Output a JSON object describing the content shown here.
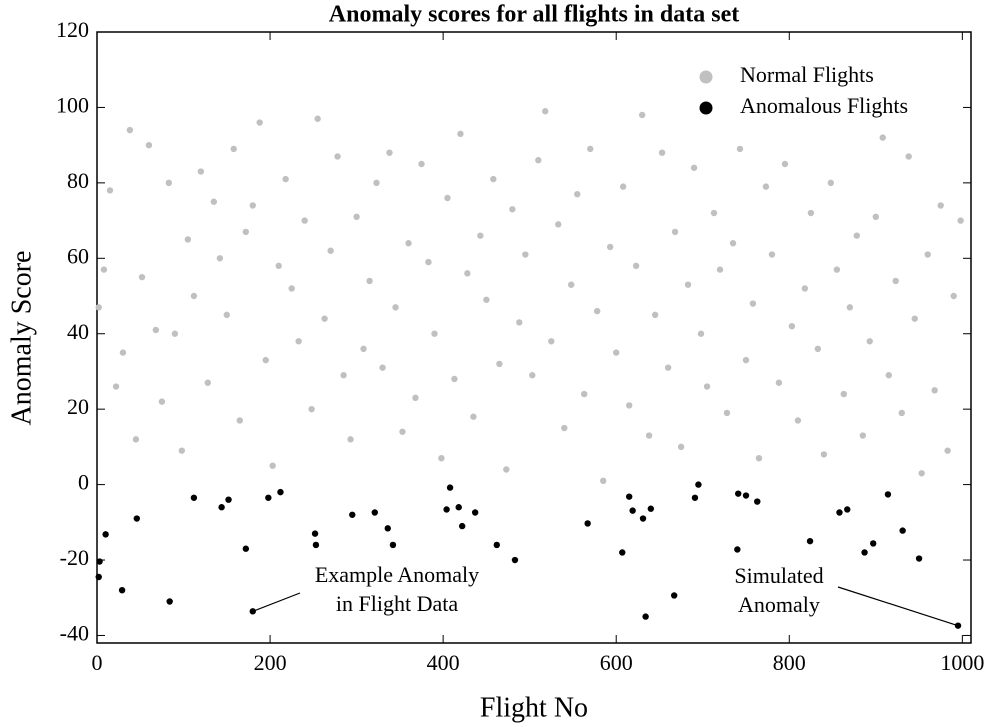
{
  "chart_data": {
    "type": "scatter",
    "title": "Anomaly scores for all flights in data set",
    "x_label": "Flight No",
    "y_label": "Anomaly Score",
    "xlim": [
      0,
      1010
    ],
    "ylim": [
      -42,
      120
    ],
    "xticks": [
      0,
      200,
      400,
      600,
      800,
      1000
    ],
    "yticks": [
      -40,
      -20,
      0,
      20,
      40,
      60,
      80,
      100,
      120
    ],
    "legend": "top-right",
    "series": [
      {
        "name": "Normal Flights",
        "color": "#c0c0c0",
        "x": [
          2,
          8,
          15,
          22,
          30,
          38,
          45,
          52,
          60,
          68,
          75,
          83,
          90,
          98,
          105,
          112,
          120,
          128,
          135,
          142,
          150,
          158,
          165,
          172,
          180,
          188,
          195,
          203,
          210,
          218,
          225,
          233,
          240,
          248,
          255,
          263,
          270,
          278,
          285,
          293,
          300,
          308,
          315,
          323,
          330,
          338,
          345,
          353,
          360,
          368,
          375,
          383,
          390,
          398,
          405,
          413,
          420,
          428,
          435,
          443,
          450,
          458,
          465,
          473,
          480,
          488,
          495,
          503,
          510,
          518,
          525,
          533,
          540,
          548,
          555,
          563,
          570,
          578,
          585,
          593,
          600,
          608,
          615,
          623,
          630,
          638,
          645,
          653,
          660,
          668,
          675,
          683,
          690,
          698,
          705,
          713,
          720,
          728,
          735,
          743,
          750,
          758,
          765,
          773,
          780,
          788,
          795,
          803,
          810,
          818,
          825,
          833,
          840,
          848,
          855,
          863,
          870,
          878,
          885,
          893,
          900,
          908,
          915,
          923,
          930,
          938,
          945,
          953,
          960,
          968,
          975,
          983,
          990,
          998
        ],
        "values": [
          47,
          57,
          78,
          26,
          35,
          94,
          12,
          55,
          90,
          41,
          22,
          80,
          40,
          9,
          65,
          50,
          83,
          27,
          75,
          60,
          45,
          89,
          17,
          67,
          74,
          96,
          33,
          5,
          58,
          81,
          52,
          38,
          70,
          20,
          97,
          44,
          62,
          87,
          29,
          12,
          71,
          36,
          54,
          80,
          31,
          88,
          47,
          14,
          64,
          23,
          85,
          59,
          40,
          7,
          76,
          28,
          93,
          56,
          18,
          66,
          49,
          81,
          32,
          4,
          73,
          43,
          61,
          29,
          86,
          99,
          38,
          69,
          15,
          53,
          77,
          24,
          89,
          46,
          1,
          63,
          35,
          79,
          21,
          58,
          98,
          13,
          45,
          88,
          31,
          67,
          10,
          53,
          84,
          40,
          26,
          72,
          57,
          19,
          64,
          89,
          33,
          48,
          7,
          79,
          61,
          27,
          85,
          42,
          17,
          52,
          72,
          36,
          8,
          80,
          57,
          24,
          47,
          66,
          13,
          38,
          71,
          92,
          29,
          54,
          19,
          87,
          44,
          3,
          61,
          25,
          74,
          9,
          50,
          70
        ]
      },
      {
        "name": "Anomalous Flights",
        "color": "#000000",
        "x": [
          3,
          2,
          10,
          29,
          46,
          84,
          112,
          144,
          152,
          172,
          180,
          198,
          212,
          252,
          253,
          295,
          321,
          336,
          342,
          404,
          408,
          418,
          422,
          437,
          462,
          483,
          567,
          607,
          615,
          619,
          631,
          634,
          640,
          667,
          691,
          695,
          740,
          741,
          750,
          763,
          824,
          858,
          867,
          887,
          897,
          914,
          931,
          950,
          995
        ],
        "values": [
          -20.4,
          -24.5,
          -13.2,
          -28,
          -9,
          -31,
          -3.5,
          -6,
          -4,
          -17,
          -33.6,
          -3.5,
          -2,
          -13,
          -16,
          -8,
          -7.4,
          -11.6,
          -16,
          -6.6,
          -0.8,
          -6,
          -11,
          -7.4,
          -16,
          -20,
          -10.3,
          -18,
          -3.2,
          -6.9,
          -9,
          -35,
          -6.4,
          -29.4,
          -3.5,
          0,
          -17.2,
          -2.4,
          -2.9,
          -4.5,
          -15,
          -7.4,
          -6.6,
          -18,
          -15.6,
          -2.6,
          -12.2,
          -19.6,
          -37.4
        ]
      }
    ],
    "annotations": [
      {
        "lines": [
          "Example Anomaly",
          "in Flight Data"
        ],
        "x": 180,
        "y": -33.6
      },
      {
        "lines": [
          "Simulated",
          "Anomaly"
        ],
        "x": 995,
        "y": -37.4
      }
    ]
  }
}
